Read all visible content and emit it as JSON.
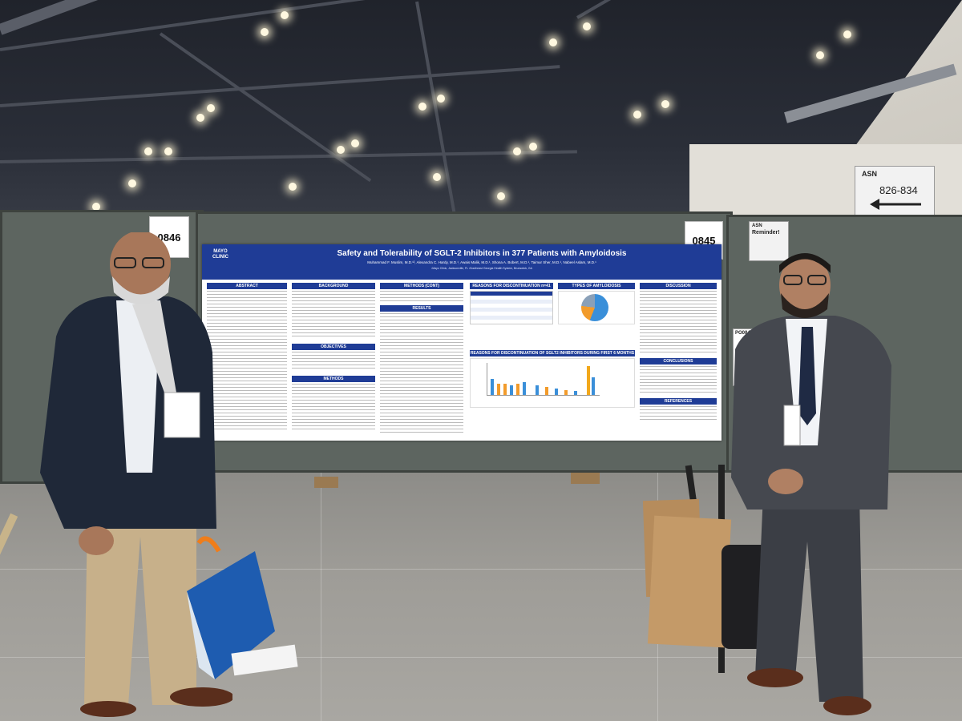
{
  "booths": {
    "left_number": "0846",
    "center_number": "0845",
    "right_tag": "PO0844"
  },
  "wall_sign": {
    "brand": "ASN",
    "range": "826-834"
  },
  "reminder_sign": {
    "brand": "ASN",
    "title": "Reminder!"
  },
  "poster": {
    "title": "Safety and Tolerability of SGLT-2 Inhibitors in 377 Patients with Amyloidosis",
    "authors": "Muhammad F. Muslim, M.D.¹², Alexandra C. Hardy, M.D.¹, Awais Malik, M.D.¹, Shona A. Bobert, M.D.¹, Taimur Sher, M.D.¹, Nabeel Aslam, M.D.¹",
    "affiliation": "¹Mayo Clinic, Jacksonville, FL ²Southeast Georgia Health System, Brunswick, GA",
    "logo": "MAYO CLINIC",
    "sections": {
      "abstract": "ABSTRACT",
      "background": "BACKGROUND",
      "methods_cont": "METHODS (CONT)",
      "results": "RESULTS",
      "objectives": "OBJECTIVES",
      "methods": "METHODS",
      "reasons": "REASONS FOR DISCONTINUATION n=41",
      "types": "TYPES OF AMYLOIDOSIS",
      "reasons_6mo": "REASONS FOR DISCONTINUATION OF SGLT2 INHIBITORS DURING FIRST 6 MONTHS",
      "discussion": "DISCUSSION",
      "conclusions": "CONCLUSIONS",
      "references": "REFERENCES"
    }
  },
  "colors": {
    "poster_blue": "#1f3c96",
    "panel_green": "#5d6560",
    "pie_blue": "#3a8fd9",
    "pie_orange": "#f29b2b"
  }
}
